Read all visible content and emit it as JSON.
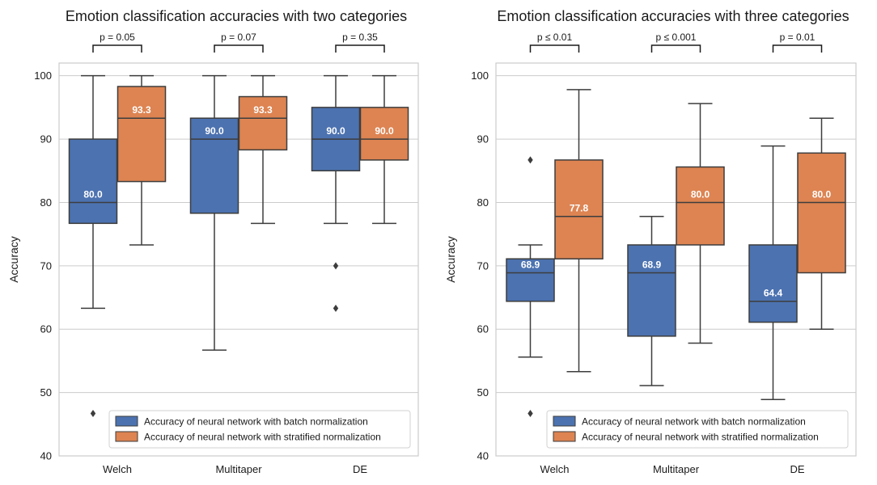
{
  "colors": {
    "batch": "#4c72b0",
    "stratified": "#dd8452",
    "grid": "#cccccc",
    "line": "#3d3d3d"
  },
  "chart_data": [
    {
      "type": "box",
      "title": "Emotion classification accuracies with two categories",
      "ylabel": "Accuracy",
      "xlabel": "",
      "ylim": [
        40,
        102
      ],
      "yticks": [
        40,
        50,
        60,
        70,
        80,
        90,
        100
      ],
      "categories": [
        "Welch",
        "Multitaper",
        "DE"
      ],
      "pvalues": [
        "p = 0.05",
        "p = 0.07",
        "p = 0.35"
      ],
      "legend": [
        "Accuracy of neural network with batch normalization",
        "Accuracy of neural network with stratified normalization"
      ],
      "legend_position": "bottom-right",
      "series": [
        {
          "name": "Accuracy of neural network with batch normalization",
          "color_key": "batch",
          "boxes": [
            {
              "whislo": 63.3,
              "q1": 76.7,
              "med": 80.0,
              "q3": 90.0,
              "whishi": 100,
              "fliers": [
                46.7
              ],
              "label": "80.0"
            },
            {
              "whislo": 56.7,
              "q1": 78.3,
              "med": 90.0,
              "q3": 93.3,
              "whishi": 100,
              "fliers": [],
              "label": "90.0"
            },
            {
              "whislo": 76.7,
              "q1": 85.0,
              "med": 90.0,
              "q3": 95.0,
              "whishi": 100,
              "fliers": [
                70.0,
                63.3
              ],
              "label": "90.0"
            }
          ]
        },
        {
          "name": "Accuracy of neural network with stratified normalization",
          "color_key": "stratified",
          "boxes": [
            {
              "whislo": 73.3,
              "q1": 83.3,
              "med": 93.3,
              "q3": 98.3,
              "whishi": 100,
              "fliers": [],
              "label": "93.3"
            },
            {
              "whislo": 76.7,
              "q1": 88.3,
              "med": 93.3,
              "q3": 96.7,
              "whishi": 100,
              "fliers": [],
              "label": "93.3"
            },
            {
              "whislo": 76.7,
              "q1": 86.7,
              "med": 90.0,
              "q3": 95.0,
              "whishi": 100,
              "fliers": [],
              "label": "90.0"
            }
          ]
        }
      ]
    },
    {
      "type": "box",
      "title": "Emotion classification accuracies with three categories",
      "ylabel": "Accuracy",
      "xlabel": "",
      "ylim": [
        40,
        102
      ],
      "yticks": [
        40,
        50,
        60,
        70,
        80,
        90,
        100
      ],
      "categories": [
        "Welch",
        "Multitaper",
        "DE"
      ],
      "pvalues": [
        "p ≤ 0.01",
        "p ≤ 0.001",
        "p = 0.01"
      ],
      "legend": [
        "Accuracy of neural network with batch normalization",
        "Accuracy of neural network with stratified normalization"
      ],
      "legend_position": "bottom-right",
      "series": [
        {
          "name": "Accuracy of neural network with batch normalization",
          "color_key": "batch",
          "boxes": [
            {
              "whislo": 55.6,
              "q1": 64.4,
              "med": 68.9,
              "q3": 71.1,
              "whishi": 73.3,
              "fliers": [
                86.7,
                46.7
              ],
              "label": "68.9"
            },
            {
              "whislo": 51.1,
              "q1": 58.9,
              "med": 68.9,
              "q3": 73.3,
              "whishi": 77.8,
              "fliers": [],
              "label": "68.9"
            },
            {
              "whislo": 48.9,
              "q1": 61.1,
              "med": 64.4,
              "q3": 73.3,
              "whishi": 88.9,
              "fliers": [],
              "label": "64.4"
            }
          ]
        },
        {
          "name": "Accuracy of neural network with stratified normalization",
          "color_key": "stratified",
          "boxes": [
            {
              "whislo": 53.3,
              "q1": 71.1,
              "med": 77.8,
              "q3": 86.7,
              "whishi": 97.8,
              "fliers": [],
              "label": "77.8"
            },
            {
              "whislo": 57.8,
              "q1": 73.3,
              "med": 80.0,
              "q3": 85.6,
              "whishi": 95.6,
              "fliers": [],
              "label": "80.0"
            },
            {
              "whislo": 60.0,
              "q1": 68.9,
              "med": 80.0,
              "q3": 87.8,
              "whishi": 93.3,
              "fliers": [],
              "label": "80.0"
            }
          ]
        }
      ]
    }
  ]
}
